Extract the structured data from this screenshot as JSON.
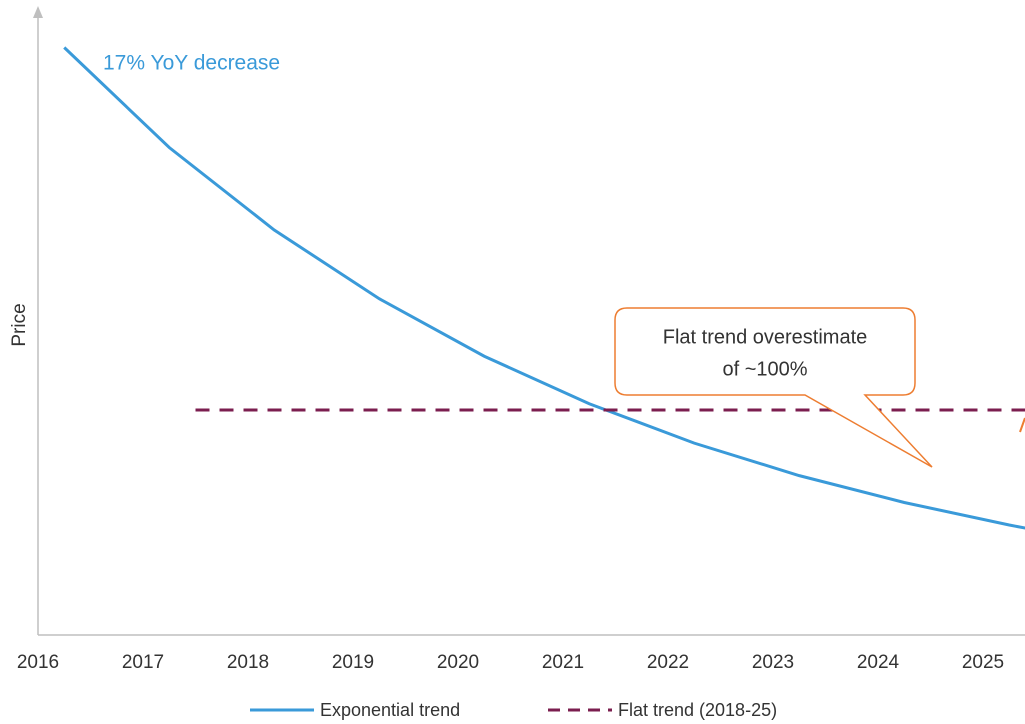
{
  "chart_data": {
    "type": "line",
    "annotation": "17% YoY decrease",
    "callout": [
      "Flat trend overestimate",
      "of ~100%"
    ],
    "ylabel": "Price",
    "xlim": [
      2016,
      2025.4
    ],
    "xticks": [
      2016,
      2017,
      2018,
      2019,
      2020,
      2021,
      2022,
      2023,
      2024,
      2025
    ],
    "ylim": [
      0,
      100
    ],
    "series": [
      {
        "name": "Exponential trend",
        "color": "#3a9ad9",
        "dash": false,
        "x": [
          2016.25,
          2017.25,
          2018.25,
          2019.25,
          2020.25,
          2021.25,
          2022.25,
          2023.25,
          2024.25,
          2025.25,
          2025.5
        ],
        "values": [
          94,
          78,
          64.8,
          53.8,
          44.6,
          37,
          30.7,
          25.5,
          21.2,
          17.6,
          16.8
        ]
      },
      {
        "name": "Flat trend (2018-25)",
        "color": "#7b1e4f",
        "dash": true,
        "x": [
          2017.5,
          2025.5
        ],
        "values": [
          36,
          36
        ]
      }
    ]
  }
}
